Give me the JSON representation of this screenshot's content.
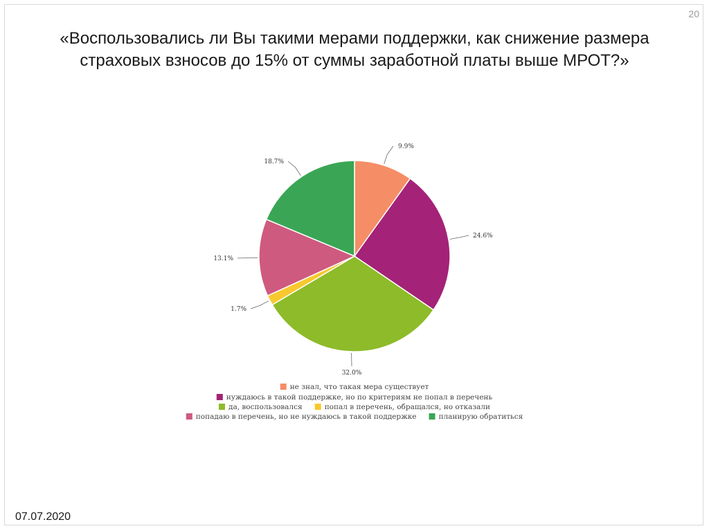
{
  "slide": {
    "page_number": "20",
    "title": "«Воспользовались ли Вы такими мерами поддержки, как снижение размера страховых взносов до 15% от суммы заработной платы выше МРОТ?»",
    "date": "07.07.2020"
  },
  "chart_data": {
    "type": "pie",
    "title": "«Воспользовались ли Вы такими мерами поддержки, как снижение размера страховых взносов до 15% от суммы заработной платы выше МРОТ?»",
    "start_angle": "12 o'clock",
    "direction": "clockwise",
    "legend_position": "bottom",
    "slices": [
      {
        "name": "не знал, что такая мера существует",
        "value": 9.9,
        "label": "9.9%",
        "color": "#F58E66"
      },
      {
        "name": "нуждаюсь в такой поддержке, но по критериям не попал в перечень",
        "value": 24.6,
        "label": "24.6%",
        "color": "#A42277"
      },
      {
        "name": "да, воспользовался",
        "value": 32.0,
        "label": "32.0%",
        "color": "#8DBB2A"
      },
      {
        "name": "попал в перечень, обращался, но отказали",
        "value": 1.7,
        "label": "1.7%",
        "color": "#F8C92F"
      },
      {
        "name": "попадаю в перечень, но не нуждаюсь в такой поддержке",
        "value": 13.1,
        "label": "13.1%",
        "color": "#CE5A7F"
      },
      {
        "name": "планирую обратиться",
        "value": 18.7,
        "label": "18.7%",
        "color": "#3AA655"
      }
    ]
  }
}
